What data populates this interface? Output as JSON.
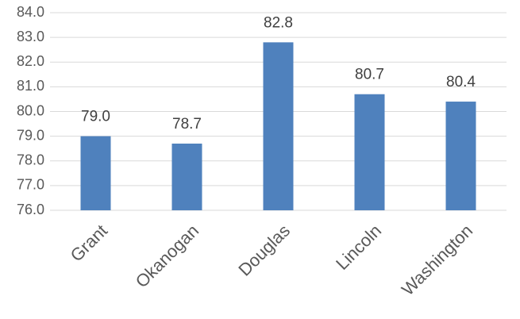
{
  "chart_data": {
    "type": "bar",
    "categories": [
      "Grant",
      "Okanogan",
      "Douglas",
      "Lincoln",
      "Washington"
    ],
    "values": [
      79.0,
      78.7,
      82.8,
      80.7,
      80.4
    ],
    "value_labels": [
      "79.0",
      "78.7",
      "82.8",
      "80.7",
      "80.4"
    ],
    "color": "#4f81bd",
    "ylim": [
      76,
      84
    ],
    "yticks": [
      {
        "value": 76,
        "label": "76.0"
      },
      {
        "value": 77,
        "label": "77.0"
      },
      {
        "value": 78,
        "label": "78.0"
      },
      {
        "value": 79,
        "label": "79.0"
      },
      {
        "value": 80,
        "label": "80.0"
      },
      {
        "value": 81,
        "label": "81.0"
      },
      {
        "value": 82,
        "label": "82.0"
      },
      {
        "value": 83,
        "label": "83.0"
      },
      {
        "value": 84,
        "label": "84.0"
      }
    ],
    "grid": true
  }
}
